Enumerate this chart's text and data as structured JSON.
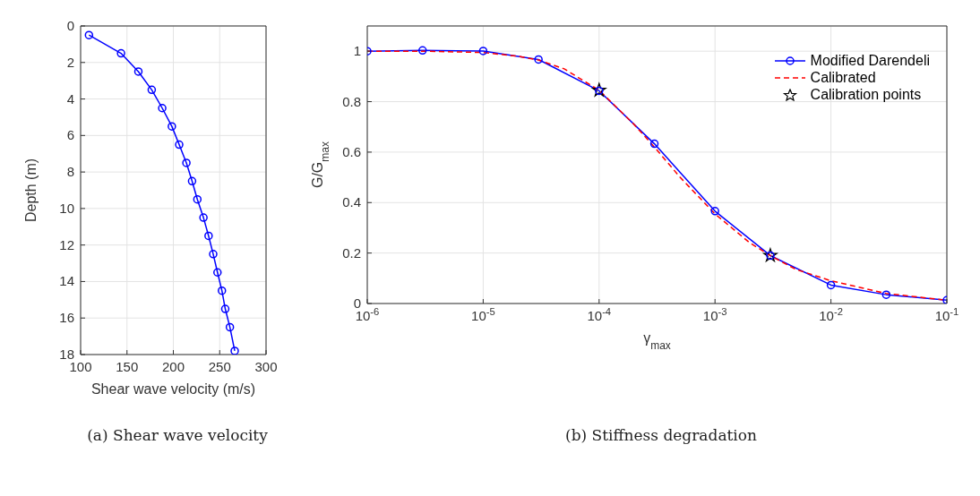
{
  "chart_data": [
    {
      "type": "line",
      "xlabel": "Shear wave velocity (m/s)",
      "ylabel": "Depth (m)",
      "annotations": [
        "(a) Shear wave velocity"
      ],
      "series": [
        {
          "color": "#0000ff",
          "x": [
            109,
            143.6,
            162.3,
            176.7,
            188,
            198.4,
            206.3,
            214.1,
            220.2,
            225.9,
            232.5,
            238,
            243,
            247.6,
            252.4,
            256,
            261,
            266.2
          ],
          "values": [
            0.5,
            1.5,
            2.5,
            3.5,
            4.5,
            5.5,
            6.5,
            7.5,
            8.5,
            9.5,
            10.5,
            11.5,
            12.5,
            13.5,
            14.5,
            15.5,
            16.5,
            17.8
          ]
        }
      ],
      "xlim": [
        100,
        300
      ],
      "xticks": [
        100,
        150,
        200,
        250,
        300
      ],
      "ylim": [
        18,
        0
      ],
      "yticks": [
        0,
        2,
        4,
        6,
        8,
        10,
        12,
        14,
        16,
        18
      ],
      "grid": true,
      "marker": "circle",
      "line_style": "solid",
      "legend": false
    },
    {
      "type": "line",
      "xlabel": "γ$_{max}$",
      "ylabel": "G/G$_{max}$",
      "annotations": [
        "(b) Stiffness degradation"
      ],
      "series": [
        {
          "name": "Modified Darendeli",
          "color": "#0000ff",
          "marker": "circle",
          "line_style": "solid",
          "x": [
            1e-06,
            3e-06,
            1e-05,
            3e-05,
            0.0001,
            0.0003,
            0.001,
            0.003,
            0.01,
            0.03,
            0.1
          ],
          "values": [
            1.0,
            1.003,
            1.001,
            0.967,
            0.843,
            0.633,
            0.366,
            0.19,
            0.073,
            0.035,
            0.013
          ]
        },
        {
          "name": "Calibrated",
          "color": "#ff0000",
          "marker": "none",
          "line_style": "dashed",
          "x": [
            1e-06,
            3e-06,
            1e-05,
            2e-05,
            3e-05,
            5e-05,
            0.0001,
            0.0002,
            0.0003,
            0.0005,
            0.001,
            0.002,
            0.003,
            0.005,
            0.01,
            0.03,
            0.1
          ],
          "values": [
            1.0,
            1.0,
            0.995,
            0.98,
            0.965,
            0.93,
            0.845,
            0.71,
            0.62,
            0.5,
            0.355,
            0.24,
            0.19,
            0.135,
            0.09,
            0.04,
            0.013
          ]
        },
        {
          "name": "Calibration points",
          "type": "scatter",
          "color": "#000000",
          "marker": "star",
          "x": [
            0.0001,
            0.003
          ],
          "values": [
            0.845,
            0.19
          ]
        }
      ],
      "log": "x",
      "xlim": [
        1e-06,
        0.1
      ],
      "xticks": [
        {
          "value": 1e-06,
          "label": "10$^{-6}$"
        },
        {
          "value": 1e-05,
          "label": "10$^{-5}$"
        },
        {
          "value": 0.0001,
          "label": "10$^{-4}$"
        },
        {
          "value": 0.001,
          "label": "10$^{-3}$"
        },
        {
          "value": 0.01,
          "label": "10$^{-2}$"
        },
        {
          "value": 0.1,
          "label": "10$^{-1}$"
        }
      ],
      "ylim": [
        0,
        1.1
      ],
      "yticks": [
        0,
        0.2,
        0.4,
        0.6,
        0.8,
        1
      ],
      "grid": true,
      "legend": "top right"
    }
  ]
}
